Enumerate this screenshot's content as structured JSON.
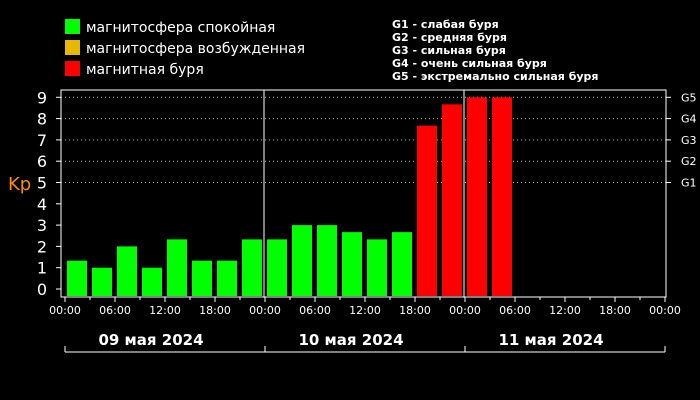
{
  "legend": [
    {
      "label": "магнитосфера спокойная",
      "color": "#00ff00"
    },
    {
      "label": "магнитосфера возбужденная",
      "color": "#e6b800"
    },
    {
      "label": "магнитная буря",
      "color": "#ff0000"
    }
  ],
  "storm_scale": [
    "G1 - слабая буря",
    "G2 - средняя буря",
    "G3 - сильная буря",
    "G4 - очень сильная буря",
    "G5 - экстремально сильная буря"
  ],
  "chart_data": {
    "type": "bar",
    "ylabel": "Kp",
    "ylim": [
      0,
      9
    ],
    "yticks": [
      "0",
      "1",
      "2",
      "3",
      "4",
      "5",
      "6",
      "7",
      "8",
      "9"
    ],
    "storm_levels": [
      {
        "label": "G1",
        "kp": 5
      },
      {
        "label": "G2",
        "kp": 6
      },
      {
        "label": "G3",
        "kp": 7
      },
      {
        "label": "G4",
        "kp": 8
      },
      {
        "label": "G5",
        "kp": 9
      }
    ],
    "x_tick_labels": [
      "00:00",
      "06:00",
      "12:00",
      "18:00",
      "00:00",
      "06:00",
      "12:00",
      "18:00",
      "00:00",
      "06:00",
      "12:00",
      "18:00",
      "00:00"
    ],
    "days": [
      "09 мая 2024",
      "10 мая 2024",
      "11 мая 2024"
    ],
    "grid": "dotted horizontal at storm levels",
    "values": [
      1.33,
      1.0,
      2.0,
      1.0,
      2.33,
      1.33,
      1.33,
      2.33,
      2.33,
      3.0,
      3.0,
      2.67,
      2.33,
      2.67,
      7.67,
      8.67,
      9.0,
      9.0
    ],
    "colors": [
      "#00ff00",
      "#00ff00",
      "#00ff00",
      "#00ff00",
      "#00ff00",
      "#00ff00",
      "#00ff00",
      "#00ff00",
      "#00ff00",
      "#00ff00",
      "#00ff00",
      "#00ff00",
      "#00ff00",
      "#00ff00",
      "#ff0000",
      "#ff0000",
      "#ff0000",
      "#ff0000"
    ]
  }
}
